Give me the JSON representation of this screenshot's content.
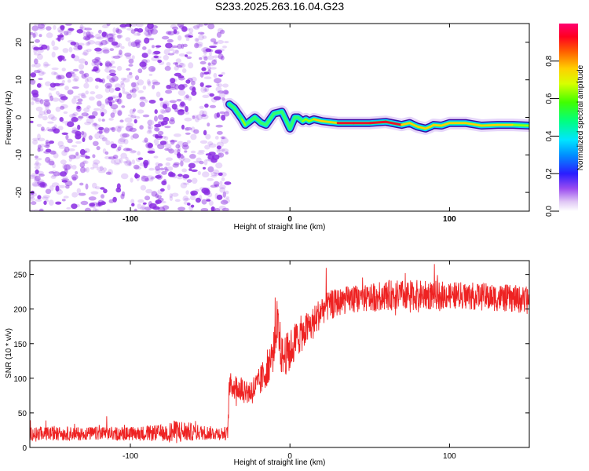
{
  "figure_title": "S233.2025.263.16.04.G23",
  "colors": {
    "snr_line": "#ee2222",
    "noise_scatter": "#8a2be2",
    "track_edge": "#3a0ca3",
    "track_mid": "#00d0ff",
    "track_core": "#e8112d"
  },
  "chart_data": [
    {
      "type": "heatmap",
      "title": "",
      "xlabel": "Height of straight line (km)",
      "ylabel": "Frequency (Hz)",
      "xlim": [
        -163,
        150
      ],
      "ylim": [
        -25,
        25
      ],
      "x_ticks": [
        -100,
        0,
        100
      ],
      "y_ticks": [
        -20,
        -10,
        0,
        10,
        20
      ],
      "noise_region_x": [
        -163,
        -39
      ],
      "track": {
        "x": [
          -38,
          -35,
          -30,
          -28,
          -25,
          -22,
          -18,
          -15,
          -10,
          -5,
          0,
          3,
          5,
          8,
          10,
          12,
          15,
          20,
          30,
          40,
          50,
          60,
          70,
          75,
          80,
          85,
          88,
          90,
          95,
          100,
          110,
          120,
          130,
          140,
          150
        ],
        "freq_hz": [
          3.5,
          2.5,
          -0.5,
          -2,
          -1,
          0,
          -1.5,
          -2,
          1,
          1.5,
          -3,
          0,
          0,
          -1,
          -0.5,
          -1,
          -0.5,
          -1,
          -1.5,
          -1.5,
          -1.5,
          -1.2,
          -2,
          -1.5,
          -2.5,
          -3,
          -2.5,
          -2,
          -2.2,
          -1.5,
          -1.5,
          -2.2,
          -2,
          -2,
          -2.2
        ],
        "amplitude": [
          0.5,
          0.45,
          0.6,
          0.5,
          0.4,
          0.5,
          0.35,
          0.4,
          0.45,
          0.5,
          0.3,
          0.4,
          0.5,
          0.55,
          0.6,
          0.7,
          0.75,
          0.8,
          0.85,
          0.95,
          0.95,
          0.9,
          0.9,
          0.85,
          0.8,
          0.8,
          0.75,
          0.8,
          0.8,
          0.85,
          0.9,
          0.85,
          0.8,
          0.75,
          0.7
        ]
      },
      "colorbar": {
        "label": "Normalized spectral amplitude",
        "range": [
          0,
          1
        ],
        "ticks": [
          "0.0",
          "0.2",
          "0.4",
          "0.6",
          "0.8"
        ],
        "tick_values": [
          0,
          0.2,
          0.4,
          0.6,
          0.8
        ]
      }
    },
    {
      "type": "line",
      "title": "",
      "xlabel": "Height of straight line (km)",
      "ylabel": "SNR (10 * v/v)",
      "xlim": [
        -163,
        150
      ],
      "ylim": [
        0,
        270
      ],
      "x_ticks": [
        -100,
        0,
        100
      ],
      "y_ticks": [
        0,
        50,
        100,
        150,
        200,
        250
      ],
      "series": [
        {
          "name": "SNR",
          "x": [
            -163,
            -150,
            -120,
            -100,
            -80,
            -70,
            -60,
            -50,
            -39,
            -38,
            -30,
            -25,
            -20,
            -15,
            -10,
            -8,
            -5,
            0,
            5,
            10,
            15,
            20,
            25,
            30,
            40,
            50,
            60,
            80,
            100,
            120,
            140,
            150
          ],
          "mean": [
            20,
            20,
            20,
            20,
            21,
            23,
            22,
            21,
            20,
            90,
            85,
            80,
            90,
            110,
            140,
            180,
            130,
            140,
            160,
            170,
            180,
            200,
            205,
            210,
            215,
            215,
            220,
            220,
            220,
            218,
            215,
            212
          ],
          "spread": [
            10,
            10,
            10,
            10,
            12,
            18,
            12,
            10,
            10,
            18,
            20,
            20,
            22,
            25,
            30,
            40,
            30,
            30,
            28,
            25,
            25,
            22,
            22,
            20,
            20,
            20,
            22,
            22,
            20,
            20,
            20,
            20
          ]
        }
      ]
    }
  ]
}
